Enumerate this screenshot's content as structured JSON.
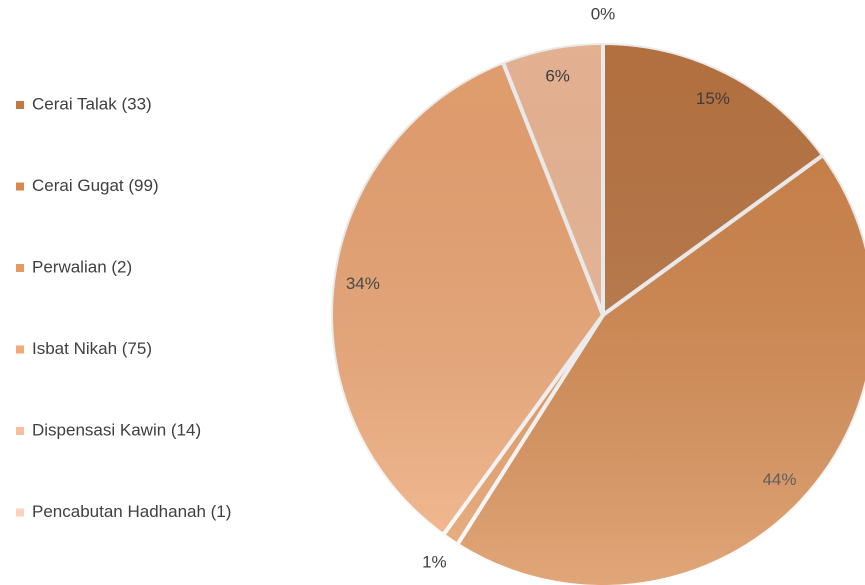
{
  "chart_data": {
    "type": "pie",
    "categories": [
      "Cerai Talak (33)",
      "Cerai Gugat (99)",
      "Perwalian (2)",
      "Isbat Nikah (75)",
      "Dispensasi Kawin (14)",
      "Pencabutan Hadhanah (1)"
    ],
    "values": [
      15,
      44,
      1,
      34,
      6,
      0
    ],
    "value_labels": [
      "15%",
      "44%",
      "1%",
      "34%",
      "6%",
      "0%"
    ],
    "colors": [
      "#c27a45",
      "#d8894c",
      "#e69a5f",
      "#f4aa76",
      "#f7bf9d",
      "#fad3bf"
    ],
    "legend": "left"
  }
}
